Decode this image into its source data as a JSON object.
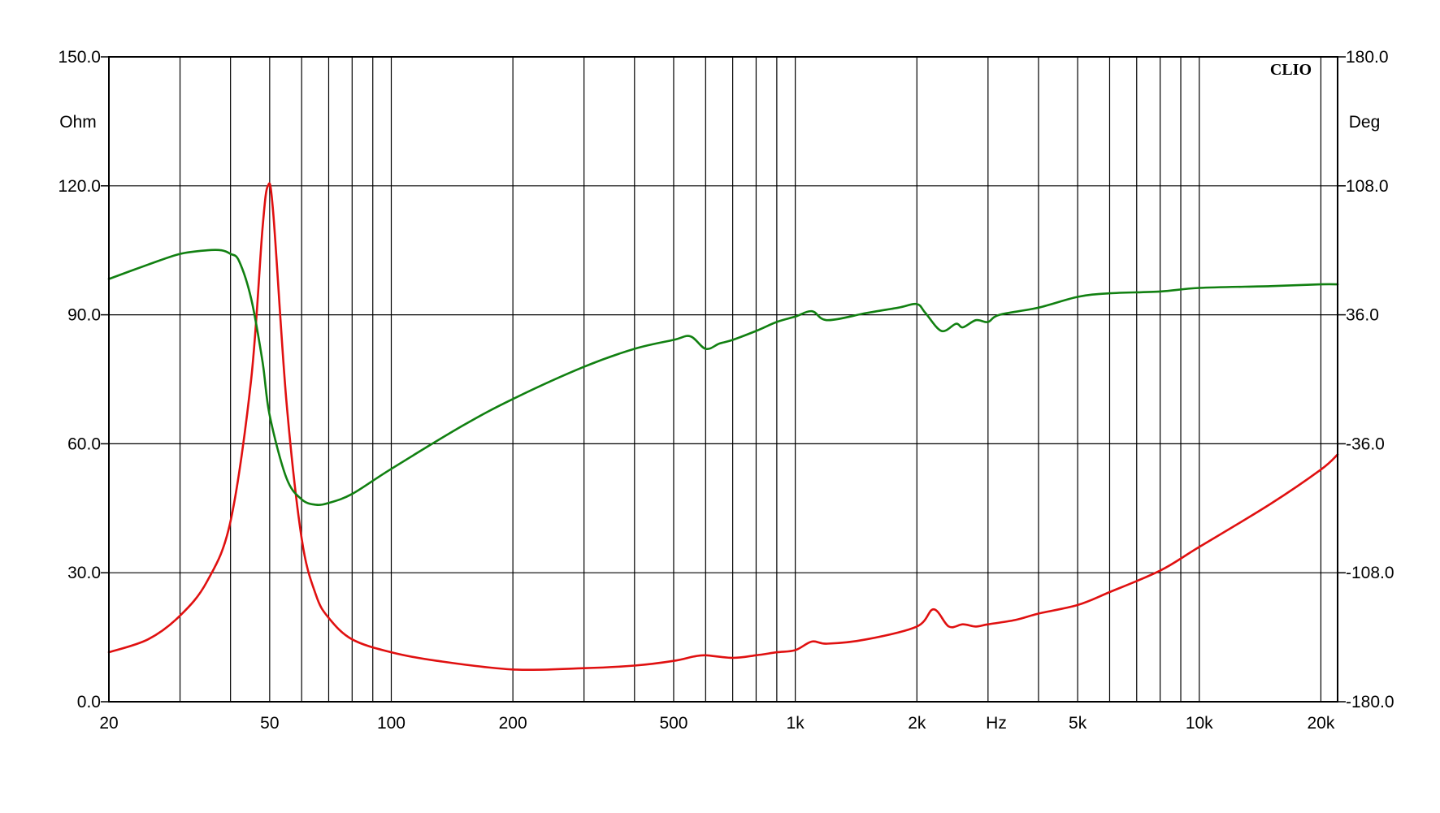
{
  "chart_data": {
    "type": "line",
    "brand": "CLIO",
    "xlabel": "Hz",
    "ylabel_left": "Ohm",
    "ylabel_right": "Deg",
    "x_scale": "log",
    "xlim": [
      20,
      22000
    ],
    "ylim_left": [
      0,
      150
    ],
    "ylim_right": [
      -180,
      180
    ],
    "grid": true,
    "x_ticks": [
      {
        "value": 20,
        "label": "20"
      },
      {
        "value": 50,
        "label": "50"
      },
      {
        "value": 100,
        "label": "100"
      },
      {
        "value": 200,
        "label": "200"
      },
      {
        "value": 500,
        "label": "500"
      },
      {
        "value": 1000,
        "label": "1k"
      },
      {
        "value": 2000,
        "label": "2k"
      },
      {
        "value": 5000,
        "label": "5k"
      },
      {
        "value": 10000,
        "label": "10k"
      },
      {
        "value": 20000,
        "label": "20k"
      }
    ],
    "x_gridlines": [
      20,
      30,
      40,
      50,
      60,
      70,
      80,
      90,
      100,
      200,
      300,
      400,
      500,
      600,
      700,
      800,
      900,
      1000,
      2000,
      3000,
      4000,
      5000,
      6000,
      7000,
      8000,
      9000,
      10000,
      20000
    ],
    "y_left_ticks": [
      {
        "value": 150,
        "label": "150.0"
      },
      {
        "value": 120,
        "label": "120.0"
      },
      {
        "value": 90,
        "label": "90.0"
      },
      {
        "value": 60,
        "label": "60.0"
      },
      {
        "value": 30,
        "label": "30.0"
      },
      {
        "value": 0,
        "label": "0.0"
      }
    ],
    "y_right_ticks": [
      {
        "value": 180,
        "label": "180.0"
      },
      {
        "value": 108,
        "label": "108.0"
      },
      {
        "value": 36,
        "label": "36.0"
      },
      {
        "value": -36,
        "label": "-36.0"
      },
      {
        "value": -108,
        "label": "-108.0"
      },
      {
        "value": -180,
        "label": "-180.0"
      }
    ],
    "series": [
      {
        "axis": "left",
        "unit": "Ohm",
        "color": "#e01010",
        "points": [
          [
            20,
            11.5
          ],
          [
            25,
            14.5
          ],
          [
            30,
            20
          ],
          [
            35,
            28
          ],
          [
            40,
            42
          ],
          [
            45,
            75
          ],
          [
            48,
            110
          ],
          [
            49.5,
            120
          ],
          [
            51,
            114
          ],
          [
            55,
            70
          ],
          [
            60,
            38
          ],
          [
            65,
            25
          ],
          [
            70,
            19.5
          ],
          [
            80,
            14.5
          ],
          [
            100,
            11.5
          ],
          [
            130,
            9.5
          ],
          [
            200,
            7.5
          ],
          [
            300,
            7.8
          ],
          [
            400,
            8.4
          ],
          [
            500,
            9.5
          ],
          [
            560,
            10.5
          ],
          [
            600,
            10.8
          ],
          [
            700,
            10.2
          ],
          [
            800,
            10.8
          ],
          [
            900,
            11.5
          ],
          [
            1000,
            12
          ],
          [
            1100,
            14
          ],
          [
            1200,
            13.5
          ],
          [
            1500,
            14.5
          ],
          [
            2000,
            17.5
          ],
          [
            2200,
            21.5
          ],
          [
            2400,
            17.5
          ],
          [
            2600,
            18
          ],
          [
            2800,
            17.5
          ],
          [
            3000,
            18
          ],
          [
            3500,
            19
          ],
          [
            4000,
            20.5
          ],
          [
            5000,
            22.5
          ],
          [
            6000,
            25.5
          ],
          [
            8000,
            30.5
          ],
          [
            10000,
            36
          ],
          [
            15000,
            46
          ],
          [
            20000,
            54
          ],
          [
            22000,
            57.5
          ]
        ]
      },
      {
        "axis": "right",
        "unit": "Deg",
        "color": "#118011",
        "points": [
          [
            20,
            56
          ],
          [
            25,
            64
          ],
          [
            30,
            70
          ],
          [
            35,
            72
          ],
          [
            38,
            72
          ],
          [
            40,
            70
          ],
          [
            42,
            66
          ],
          [
            45,
            45
          ],
          [
            48,
            10
          ],
          [
            50,
            -20
          ],
          [
            55,
            -55
          ],
          [
            60,
            -67
          ],
          [
            65,
            -70
          ],
          [
            70,
            -69
          ],
          [
            80,
            -64
          ],
          [
            100,
            -50
          ],
          [
            150,
            -26
          ],
          [
            200,
            -11
          ],
          [
            300,
            7
          ],
          [
            400,
            17
          ],
          [
            500,
            22
          ],
          [
            550,
            24
          ],
          [
            600,
            17
          ],
          [
            650,
            20
          ],
          [
            700,
            22
          ],
          [
            800,
            27
          ],
          [
            900,
            32
          ],
          [
            1000,
            35
          ],
          [
            1100,
            38
          ],
          [
            1200,
            33
          ],
          [
            1500,
            37
          ],
          [
            1800,
            40
          ],
          [
            2000,
            42
          ],
          [
            2100,
            37
          ],
          [
            2300,
            27
          ],
          [
            2500,
            31
          ],
          [
            2600,
            29
          ],
          [
            2800,
            33
          ],
          [
            3000,
            32
          ],
          [
            3200,
            36
          ],
          [
            4000,
            40
          ],
          [
            5000,
            46
          ],
          [
            6000,
            48
          ],
          [
            8000,
            49
          ],
          [
            10000,
            51
          ],
          [
            15000,
            52
          ],
          [
            20000,
            53
          ],
          [
            22000,
            53
          ]
        ]
      }
    ]
  }
}
